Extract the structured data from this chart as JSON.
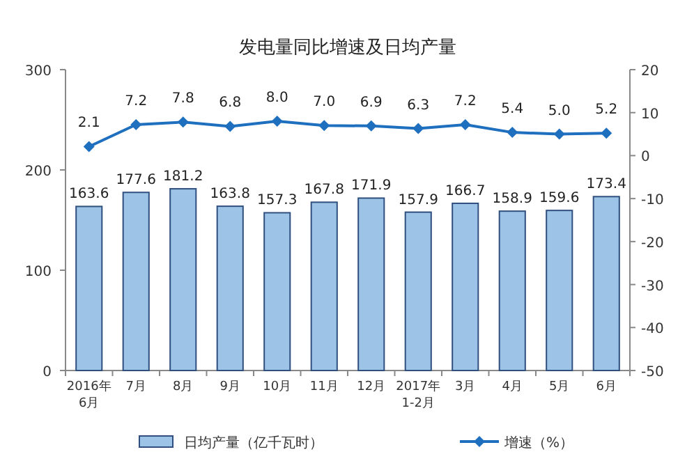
{
  "chart_data": {
    "type": "bar",
    "title": "发电量同比增速及日均产量",
    "categories": [
      "2016年\n6月",
      "7月",
      "8月",
      "9月",
      "10月",
      "11月",
      "12月",
      "2017年\n1-2月",
      "3月",
      "4月",
      "5月",
      "6月"
    ],
    "series": [
      {
        "name": "日均产量（亿千瓦时）",
        "color": "#9dc3e6",
        "values": [
          163.6,
          177.6,
          181.2,
          163.8,
          157.3,
          167.8,
          171.9,
          157.9,
          166.7,
          158.9,
          159.6,
          173.4
        ]
      },
      {
        "name": "增速（%）",
        "type": "line",
        "axis": "y2",
        "color": "#1f6fbf",
        "marker": "diamond",
        "values": [
          2.1,
          7.2,
          7.8,
          6.8,
          8.0,
          7.0,
          6.9,
          6.3,
          7.2,
          5.4,
          5.0,
          5.2
        ],
        "value_labels": [
          "2.1",
          "7.2",
          "7.8",
          "6.8",
          "8.0",
          "7.0",
          "6.9",
          "6.3",
          "7.2",
          "5.4",
          "5.0",
          "5.2"
        ]
      }
    ],
    "ylim": [
      0,
      300
    ],
    "yticks": [
      0,
      100,
      200,
      300
    ],
    "y2lim": [
      -50,
      20
    ],
    "y2ticks": [
      -50,
      -40,
      -30,
      -20,
      -10,
      0,
      10,
      20
    ],
    "data_labels": true,
    "legend": "bottom",
    "grid": false
  }
}
